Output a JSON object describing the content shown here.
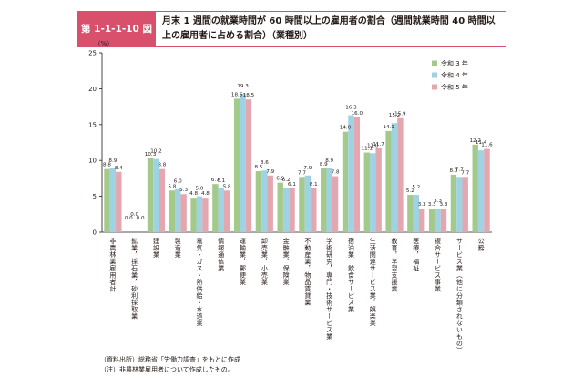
{
  "header": {
    "figure_number": "第 1-1-1-10 図",
    "title": "月末 1 週間の就業時間が 60 時間以上の雇用者の割合（週間就業時間 40 時間以上の雇用者に占める割合）（業種別）"
  },
  "notes": {
    "source": "（資料出所）総務省「労働力調査」をもとに作成",
    "note": "（注）非農林業雇用者について作成したもの。"
  },
  "colors": {
    "r3": "#a3c98b",
    "r4": "#9fd3e3",
    "r5": "#e4a7b0",
    "axis": "#231815"
  },
  "chart_data": {
    "type": "bar",
    "ylabel": "（%）",
    "ylim": [
      0,
      25
    ],
    "yticks": [
      0,
      5,
      10,
      15,
      20,
      25
    ],
    "legend_position": "right",
    "categories": [
      "非農林業雇用者計",
      "鉱業，採石業，砂利採取業",
      "建設業",
      "製造業",
      "電気・ガス・熱供給・水道業",
      "情報通信業",
      "運輸業，郵便業",
      "卸売業，小売業",
      "金融業，保険業",
      "不動産業，物品賃貸業",
      "学術研究，専門・技術サービス業",
      "宿泊業，飲食サービス業",
      "生活関連サービス業，娯楽業",
      "教育，学習支援業",
      "医療，福祉",
      "複合サービス事業",
      "サービス業（他に分類されないもの）",
      "公務"
    ],
    "series": [
      {
        "name": "令和 3 年",
        "values": [
          8.8,
          0.0,
          10.3,
          5.8,
          4.8,
          6.7,
          18.6,
          8.5,
          6.9,
          7.7,
          8.9,
          14.0,
          11.1,
          14.1,
          5.2,
          3.3,
          8.0,
          12.2
        ]
      },
      {
        "name": "令和 4 年",
        "values": [
          8.9,
          0.0,
          10.2,
          6.0,
          5.0,
          6.1,
          19.3,
          8.6,
          6.2,
          7.9,
          8.9,
          16.3,
          11.0,
          15.2,
          5.2,
          3.3,
          7.7,
          11.4
        ]
      },
      {
        "name": "令和 5 年",
        "values": [
          8.4,
          0.0,
          8.8,
          5.3,
          4.8,
          5.8,
          18.5,
          7.9,
          6.1,
          6.1,
          7.8,
          16.0,
          11.7,
          15.9,
          3.3,
          3.3,
          7.7,
          11.6
        ]
      }
    ],
    "data_labels": [
      [
        "8.8",
        "0.0",
        "10.3",
        "5.8",
        "4.8",
        "6.7",
        "18.6",
        "8.5",
        "6.9",
        "7.7",
        "8.9",
        "14.0",
        "11.1",
        "14.1",
        "5.2",
        "3.3",
        "8.0",
        "12.2"
      ],
      [
        "8.9",
        "0.0",
        "10.2",
        "6.0",
        "5.0",
        "6.1",
        "19.3",
        "8.6",
        "6.2",
        "7.9",
        "8.9",
        "16.3",
        "11.0",
        "15.2",
        "5.2",
        "3.3",
        "7.7",
        "11.4"
      ],
      [
        "8.4",
        "0.0",
        "8.8",
        "5.3",
        "4.8",
        "5.8",
        "18.5",
        "7.9",
        "6.1",
        "6.1",
        "7.8",
        "16.0",
        "11.7",
        "15.9",
        "3.3",
        "3.3",
        "7.7",
        "11.6"
      ]
    ]
  }
}
